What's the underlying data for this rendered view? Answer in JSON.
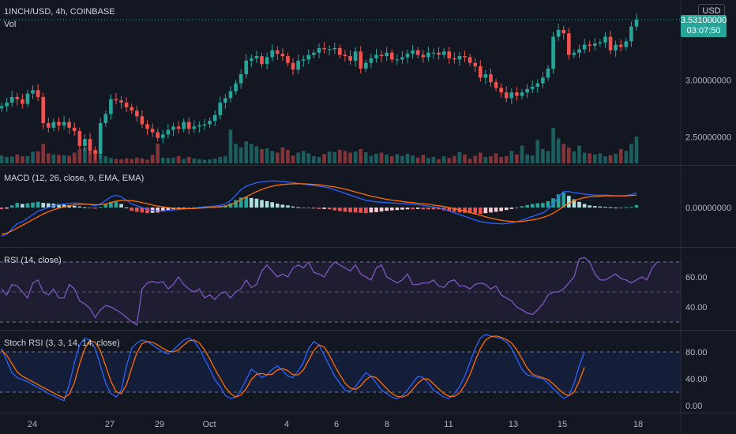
{
  "header": {
    "symbol_line": "1INCH/USD, 4h, COINBASE",
    "volume_label": "Vol",
    "currency_button": "USD"
  },
  "last_price": {
    "value": "3.53100000",
    "countdown": "03:07:50",
    "color": "#26a69a"
  },
  "panels": {
    "macd_label": "MACD (12, 26, close, 9, EMA, EMA)",
    "rsi_label": "RSI (14, close)",
    "stoch_label": "Stoch RSI (3, 3, 14, 14, close)"
  },
  "colors": {
    "up": "#26a69a",
    "down": "#ef5350",
    "macd_line": "#2962ff",
    "signal_line": "#ff6d00",
    "rsi_line": "#7e57c2",
    "stoch_k": "#2962ff",
    "stoch_d": "#ff6d00",
    "background": "#131722"
  },
  "chart_data": [
    {
      "type": "candlestick",
      "series_name": "1INCH/USD",
      "y_ticks": [
        "3.00000000",
        "2.50000000"
      ],
      "x_ticks": [
        "24",
        "27",
        "29",
        "Oct",
        "4",
        "6",
        "8",
        "11",
        "13",
        "15",
        "18"
      ],
      "close_values": [
        2.77,
        2.8,
        2.85,
        2.83,
        2.79,
        2.88,
        2.91,
        2.85,
        2.62,
        2.58,
        2.63,
        2.6,
        2.63,
        2.58,
        2.55,
        2.42,
        2.48,
        2.38,
        2.35,
        2.62,
        2.7,
        2.83,
        2.82,
        2.8,
        2.76,
        2.73,
        2.68,
        2.61,
        2.57,
        2.54,
        2.49,
        2.52,
        2.56,
        2.59,
        2.57,
        2.63,
        2.57,
        2.59,
        2.6,
        2.61,
        2.64,
        2.69,
        2.8,
        2.84,
        2.9,
        2.97,
        3.05,
        3.17,
        3.19,
        3.21,
        3.14,
        3.2,
        3.26,
        3.23,
        3.21,
        3.15,
        3.09,
        3.17,
        3.18,
        3.22,
        3.24,
        3.28,
        3.27,
        3.27,
        3.28,
        3.22,
        3.21,
        3.17,
        3.25,
        3.1,
        3.15,
        3.19,
        3.22,
        3.21,
        3.24,
        3.18,
        3.18,
        3.2,
        3.23,
        3.26,
        3.22,
        3.2,
        3.24,
        3.24,
        3.22,
        3.25,
        3.19,
        3.18,
        3.21,
        3.2,
        3.15,
        3.12,
        3.02,
        3.05,
        2.98,
        2.93,
        2.89,
        2.84,
        2.89,
        2.86,
        2.89,
        2.92,
        2.94,
        2.97,
        3.02,
        3.1,
        3.38,
        3.44,
        3.41,
        3.22,
        3.24,
        3.27,
        3.31,
        3.3,
        3.32,
        3.33,
        3.38,
        3.26,
        3.31,
        3.29,
        3.34,
        3.47,
        3.53
      ],
      "volume_relative": [
        0.22,
        0.18,
        0.19,
        0.25,
        0.2,
        0.2,
        0.33,
        0.34,
        0.55,
        0.28,
        0.25,
        0.24,
        0.23,
        0.21,
        0.3,
        0.4,
        0.45,
        0.6,
        0.38,
        0.25,
        0.2,
        0.15,
        0.12,
        0.11,
        0.14,
        0.12,
        0.16,
        0.14,
        0.1,
        0.24,
        0.55,
        0.16,
        0.15,
        0.16,
        0.2,
        0.12,
        0.18,
        0.14,
        0.12,
        0.1,
        0.11,
        0.13,
        0.18,
        0.21,
        0.95,
        0.55,
        0.45,
        0.62,
        0.55,
        0.48,
        0.4,
        0.42,
        0.35,
        0.3,
        0.45,
        0.38,
        0.22,
        0.3,
        0.35,
        0.28,
        0.2,
        0.18,
        0.26,
        0.33,
        0.32,
        0.38,
        0.35,
        0.3,
        0.33,
        0.4,
        0.31,
        0.21,
        0.27,
        0.3,
        0.25,
        0.2,
        0.26,
        0.21,
        0.27,
        0.22,
        0.16,
        0.24,
        0.15,
        0.18,
        0.12,
        0.2,
        0.15,
        0.21,
        0.32,
        0.25,
        0.13,
        0.21,
        0.3,
        0.18,
        0.2,
        0.28,
        0.18,
        0.2,
        0.35,
        0.25,
        0.5,
        0.25,
        0.22,
        0.66,
        0.4,
        0.35,
        1.0,
        0.7,
        0.55,
        0.45,
        0.34,
        0.5,
        0.3,
        0.28,
        0.25,
        0.28,
        0.2,
        0.23,
        0.27,
        0.4,
        0.35,
        0.55,
        0.75
      ],
      "ylim": [
        2.28,
        3.62
      ]
    },
    {
      "type": "line",
      "title": "MACD",
      "y_ticks": [
        "0.00000000"
      ],
      "macd_values": [
        -0.08,
        -0.075,
        -0.06,
        -0.045,
        -0.04,
        -0.03,
        -0.02,
        -0.01,
        -0.005,
        0.0,
        0.005,
        0.008,
        0.01,
        0.012,
        0.013,
        0.012,
        0.01,
        0.008,
        0.005,
        0.01,
        0.02,
        0.03,
        0.035,
        0.03,
        0.02,
        0.01,
        0.005,
        0.0,
        -0.005,
        -0.008,
        -0.01,
        -0.009,
        -0.008,
        -0.007,
        -0.006,
        -0.004,
        -0.003,
        -0.002,
        0.0,
        0.002,
        0.003,
        0.004,
        0.006,
        0.01,
        0.02,
        0.035,
        0.05,
        0.06,
        0.065,
        0.07,
        0.072,
        0.074,
        0.075,
        0.074,
        0.073,
        0.072,
        0.07,
        0.068,
        0.066,
        0.064,
        0.062,
        0.06,
        0.058,
        0.055,
        0.05,
        0.045,
        0.04,
        0.035,
        0.03,
        0.025,
        0.02,
        0.018,
        0.016,
        0.015,
        0.014,
        0.013,
        0.012,
        0.011,
        0.01,
        0.009,
        0.008,
        0.006,
        0.004,
        0.002,
        0.0,
        -0.005,
        -0.01,
        -0.015,
        -0.02,
        -0.025,
        -0.03,
        -0.035,
        -0.04,
        -0.042,
        -0.044,
        -0.045,
        -0.046,
        -0.045,
        -0.043,
        -0.04,
        -0.035,
        -0.03,
        -0.025,
        -0.02,
        -0.015,
        -0.005,
        0.01,
        0.03,
        0.045,
        0.045,
        0.042,
        0.04,
        0.038,
        0.036,
        0.035,
        0.035,
        0.035,
        0.034,
        0.033,
        0.033,
        0.034,
        0.036,
        0.042
      ],
      "signal_values": [
        -0.075,
        -0.072,
        -0.066,
        -0.058,
        -0.05,
        -0.042,
        -0.034,
        -0.026,
        -0.018,
        -0.012,
        -0.006,
        -0.002,
        0.002,
        0.005,
        0.008,
        0.009,
        0.009,
        0.009,
        0.008,
        0.008,
        0.01,
        0.014,
        0.018,
        0.02,
        0.02,
        0.019,
        0.017,
        0.014,
        0.011,
        0.007,
        0.004,
        0.002,
        0.0,
        -0.002,
        -0.003,
        -0.003,
        -0.003,
        -0.003,
        -0.002,
        -0.001,
        0.0,
        0.001,
        0.002,
        0.004,
        0.008,
        0.014,
        0.022,
        0.03,
        0.038,
        0.045,
        0.051,
        0.056,
        0.06,
        0.063,
        0.065,
        0.066,
        0.067,
        0.067,
        0.067,
        0.066,
        0.065,
        0.064,
        0.062,
        0.06,
        0.058,
        0.055,
        0.052,
        0.048,
        0.044,
        0.04,
        0.036,
        0.032,
        0.029,
        0.026,
        0.023,
        0.021,
        0.019,
        0.017,
        0.015,
        0.014,
        0.012,
        0.011,
        0.009,
        0.007,
        0.005,
        0.003,
        0.0,
        -0.003,
        -0.006,
        -0.01,
        -0.014,
        -0.018,
        -0.022,
        -0.026,
        -0.03,
        -0.033,
        -0.036,
        -0.038,
        -0.039,
        -0.04,
        -0.039,
        -0.037,
        -0.035,
        -0.032,
        -0.028,
        -0.023,
        -0.016,
        -0.007,
        0.003,
        0.012,
        0.019,
        0.024,
        0.028,
        0.03,
        0.031,
        0.032,
        0.033,
        0.033,
        0.033,
        0.033,
        0.033,
        0.034,
        0.035
      ],
      "ylim": [
        -0.1,
        0.1
      ]
    },
    {
      "type": "line",
      "title": "RSI",
      "y_ticks": [
        "60.00",
        "40.00"
      ],
      "bands": [
        70,
        50,
        30
      ],
      "values": [
        52,
        48,
        55,
        54,
        50,
        46,
        56,
        58,
        50,
        48,
        52,
        46,
        46,
        55,
        52,
        44,
        42,
        39,
        33,
        38,
        41,
        40,
        38,
        36,
        33,
        30,
        28,
        52,
        56,
        57,
        56,
        57,
        52,
        55,
        60,
        55,
        52,
        50,
        52,
        46,
        48,
        45,
        49,
        50,
        46,
        50,
        52,
        58,
        53,
        55,
        64,
        68,
        64,
        60,
        62,
        60,
        66,
        68,
        66,
        70,
        63,
        62,
        60,
        66,
        70,
        68,
        66,
        64,
        68,
        62,
        60,
        58,
        66,
        68,
        60,
        58,
        56,
        58,
        62,
        55,
        55,
        56,
        56,
        58,
        54,
        53,
        57,
        58,
        54,
        54,
        52,
        55,
        56,
        55,
        52,
        54,
        48,
        46,
        44,
        40,
        38,
        36,
        35,
        38,
        42,
        48,
        50,
        50,
        52,
        56,
        60,
        72,
        73,
        70,
        62,
        58,
        58,
        60,
        62,
        59,
        58,
        56,
        58,
        60,
        58,
        66,
        70
      ],
      "ylim": [
        20,
        80
      ]
    },
    {
      "type": "line",
      "title": "Stoch RSI",
      "y_ticks": [
        "80.00",
        "40.00",
        "0.00"
      ],
      "bands": [
        80,
        20
      ],
      "k_values": [
        80,
        62,
        45,
        38,
        35,
        32,
        28,
        24,
        20,
        15,
        12,
        8,
        5,
        28,
        60,
        85,
        95,
        92,
        80,
        55,
        30,
        15,
        10,
        20,
        55,
        80,
        88,
        92,
        90,
        85,
        80,
        75,
        72,
        78,
        85,
        92,
        95,
        90,
        80,
        65,
        50,
        35,
        25,
        12,
        8,
        10,
        20,
        35,
        50,
        45,
        38,
        42,
        50,
        55,
        48,
        40,
        38,
        48,
        60,
        80,
        90,
        85,
        70,
        55,
        40,
        30,
        20,
        18,
        25,
        35,
        45,
        40,
        30,
        20,
        15,
        10,
        8,
        12,
        20,
        30,
        40,
        38,
        30,
        20,
        15,
        10,
        8,
        15,
        25,
        40,
        60,
        80,
        95,
        100,
        98,
        96,
        94,
        90,
        80,
        65,
        50,
        42,
        40,
        38,
        36,
        30,
        22,
        15,
        8,
        12,
        30,
        55,
        75
      ],
      "d_values": [
        78,
        70,
        58,
        46,
        40,
        36,
        32,
        28,
        24,
        20,
        16,
        12,
        9,
        14,
        31,
        58,
        80,
        91,
        89,
        76,
        55,
        33,
        18,
        15,
        28,
        52,
        74,
        87,
        90,
        89,
        85,
        80,
        76,
        75,
        78,
        85,
        91,
        92,
        88,
        78,
        65,
        50,
        37,
        24,
        15,
        10,
        13,
        22,
        35,
        43,
        44,
        42,
        43,
        49,
        51,
        48,
        42,
        42,
        49,
        63,
        77,
        85,
        82,
        70,
        55,
        42,
        30,
        23,
        21,
        26,
        35,
        40,
        38,
        30,
        22,
        15,
        11,
        10,
        13,
        21,
        30,
        36,
        36,
        29,
        22,
        15,
        11,
        11,
        16,
        27,
        42,
        62,
        80,
        92,
        97,
        98,
        96,
        93,
        88,
        78,
        65,
        52,
        43,
        40,
        38,
        35,
        29,
        22,
        15,
        12,
        17,
        33,
        53
      ]
    }
  ]
}
